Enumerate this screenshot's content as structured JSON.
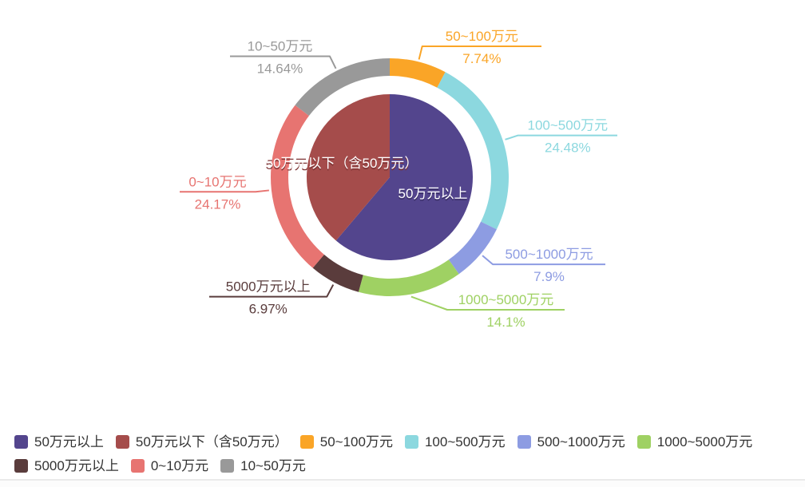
{
  "chart_data": {
    "type": "pie",
    "subtype": "two-level-donut",
    "title": "",
    "units": "percent",
    "legend_position": "bottom-left",
    "background_color": "#ffffff",
    "inner_series": [
      {
        "label": "50万元以上",
        "value": 61.19,
        "color": "#53458D"
      },
      {
        "label": "50万元以下（含50万元）",
        "value": 38.81,
        "color": "#A54C4B"
      }
    ],
    "outer_series": [
      {
        "label": "50~100万元",
        "value": 7.74,
        "percent_label": "7.74%",
        "color": "#FAA527"
      },
      {
        "label": "100~500万元",
        "value": 24.48,
        "percent_label": "24.48%",
        "color": "#8CD8DF"
      },
      {
        "label": "500~1000万元",
        "value": 7.9,
        "percent_label": "7.9%",
        "color": "#8D9CE2"
      },
      {
        "label": "1000~5000万元",
        "value": 14.1,
        "percent_label": "14.1%",
        "color": "#9FD163"
      },
      {
        "label": "5000万元以上",
        "value": 6.97,
        "percent_label": "6.97%",
        "color": "#5A3C3C"
      },
      {
        "label": "0~10万元",
        "value": 24.17,
        "percent_label": "24.17%",
        "color": "#E77471"
      },
      {
        "label": "10~50万元",
        "value": 14.64,
        "percent_label": "14.64%",
        "color": "#999999"
      }
    ],
    "legend": {
      "text_color": "#333333",
      "rows": [
        [
          {
            "label": "50万元以上",
            "color": "#53458D"
          },
          {
            "label": "50万元以下（含50万元）",
            "color": "#A54C4B"
          },
          {
            "label": "50~100万元",
            "color": "#FAA527"
          },
          {
            "label": "100~500万元",
            "color": "#8CD8DF"
          },
          {
            "label": "500~1000万元",
            "color": "#8D9CE2"
          },
          {
            "label": "1000~5000万元",
            "color": "#9FD163"
          }
        ],
        [
          {
            "label": "5000万元以上",
            "color": "#5A3C3C"
          },
          {
            "label": "0~10万元",
            "color": "#E77471"
          },
          {
            "label": "10~50万元",
            "color": "#999999"
          }
        ]
      ]
    }
  }
}
